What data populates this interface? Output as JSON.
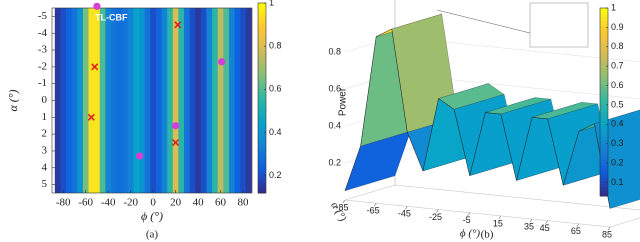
{
  "chart_data": [
    {
      "type": "heatmap",
      "annotation": "TL-CBF",
      "xlabel": "ϕ (°)",
      "ylabel": "α (°)",
      "caption": "(a)",
      "x": [
        -85,
        -80,
        -75,
        -70,
        -65,
        -60,
        -55,
        -50,
        -45,
        -40,
        -35,
        -30,
        -25,
        -20,
        -15,
        -10,
        -5,
        0,
        5,
        10,
        15,
        20,
        25,
        30,
        35,
        40,
        45,
        50,
        55,
        60,
        65,
        70,
        75,
        80,
        85
      ],
      "values": [
        0.15,
        0.2,
        0.25,
        0.3,
        0.4,
        0.65,
        0.95,
        0.95,
        0.6,
        0.35,
        0.3,
        0.28,
        0.3,
        0.35,
        0.45,
        0.4,
        0.3,
        0.2,
        0.25,
        0.35,
        0.55,
        0.8,
        0.55,
        0.3,
        0.2,
        0.15,
        0.2,
        0.35,
        0.55,
        0.75,
        0.6,
        0.35,
        0.25,
        0.2,
        0.15
      ],
      "xlim": [
        -90,
        88
      ],
      "xticks": [
        -80,
        -60,
        -40,
        -20,
        0,
        20,
        40,
        60,
        80
      ],
      "ylim": [
        -5.5,
        5.5
      ],
      "yticks": [
        -5,
        -4,
        -3,
        -2,
        -1,
        0,
        1,
        2,
        3,
        4,
        5
      ],
      "y_reversed": true,
      "clim": [
        0.12,
        1
      ],
      "cticks": [
        0.2,
        0.4,
        0.6,
        0.8,
        1
      ],
      "colormap": [
        "#352a87",
        "#0f5cdd",
        "#1481d6",
        "#06a4ca",
        "#2eb7a4",
        "#87bf77",
        "#d1bb59",
        "#fec832",
        "#f9fb0e"
      ],
      "series": [
        {
          "marker": "x",
          "color": "#e0211f",
          "x": [
            -52,
            -55,
            22,
            20
          ],
          "y": [
            -2,
            1,
            -4.5,
            2.5
          ]
        },
        {
          "marker": "o",
          "color": "#d93dd9",
          "x": [
            -50,
            -12,
            20,
            61
          ],
          "y": [
            -5.6,
            3.3,
            1.5,
            -2.3
          ]
        }
      ]
    },
    {
      "type": "surface",
      "xlabel": "ϕ (°)",
      "ylabel": "α (°)",
      "zlabel": "Power",
      "caption": "(b)",
      "x": [
        -85,
        -75,
        -65,
        -55,
        -45,
        -35,
        -25,
        -15,
        -5,
        5,
        15,
        25,
        35,
        45,
        55,
        65,
        75,
        85
      ],
      "values": [
        0.05,
        0.3,
        0.9,
        0.95,
        0.4,
        0.2,
        0.6,
        0.55,
        0.2,
        0.55,
        0.55,
        0.2,
        0.55,
        0.55,
        0.2,
        0.5,
        0.55,
        0.1
      ],
      "xlim": [
        -85,
        85
      ],
      "xticks": [
        -85,
        -65,
        -45,
        -25,
        -5,
        15,
        35,
        45,
        65,
        85
      ],
      "ylim": [
        -5,
        5
      ],
      "zlim": [
        0,
        1
      ],
      "zticks": [
        0.2,
        0.4,
        0.6,
        0.8
      ],
      "clim": [
        0.03,
        1
      ],
      "cticks": [
        0.1,
        0.2,
        0.3,
        0.4,
        0.5,
        0.6,
        0.7,
        0.8,
        0.9,
        1
      ],
      "colormap": [
        "#352a87",
        "#0f5cdd",
        "#1481d6",
        "#06a4ca",
        "#2eb7a4",
        "#87bf77",
        "#d1bb59",
        "#fec832",
        "#f9fb0e"
      ]
    }
  ]
}
